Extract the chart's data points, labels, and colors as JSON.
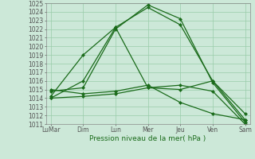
{
  "xlabel": "Pression niveau de la mer( hPa )",
  "bg_color": "#cce8d8",
  "grid_color": "#99ccaa",
  "line_color": "#1a6b1a",
  "ylim": [
    1011,
    1025
  ],
  "yticks": [
    1011,
    1012,
    1013,
    1014,
    1015,
    1016,
    1017,
    1018,
    1019,
    1020,
    1021,
    1022,
    1023,
    1024,
    1025
  ],
  "x_labels": [
    "LuMar",
    "Dim",
    "Lun",
    "Mer",
    "Jeu",
    "Ven",
    "Sam"
  ],
  "x_positions": [
    0,
    2,
    4,
    6,
    8,
    10,
    12
  ],
  "series": [
    [
      1014.0,
      1016.0,
      1022.2,
      1024.5,
      1022.5,
      1016.0,
      1011.5
    ],
    [
      1014.8,
      1015.2,
      1022.0,
      1024.8,
      1023.2,
      1015.8,
      1011.2
    ],
    [
      1014.2,
      1019.0,
      1022.2,
      1015.2,
      1015.0,
      1016.0,
      1012.2
    ],
    [
      1014.0,
      1014.2,
      1014.5,
      1015.2,
      1015.5,
      1014.8,
      1011.0
    ],
    [
      1015.0,
      1014.5,
      1014.8,
      1015.5,
      1013.5,
      1012.2,
      1011.5
    ]
  ],
  "marker": "D",
  "marker_size": 2.0,
  "line_width": 0.9,
  "tick_fontsize": 5.5,
  "xlabel_fontsize": 6.5
}
